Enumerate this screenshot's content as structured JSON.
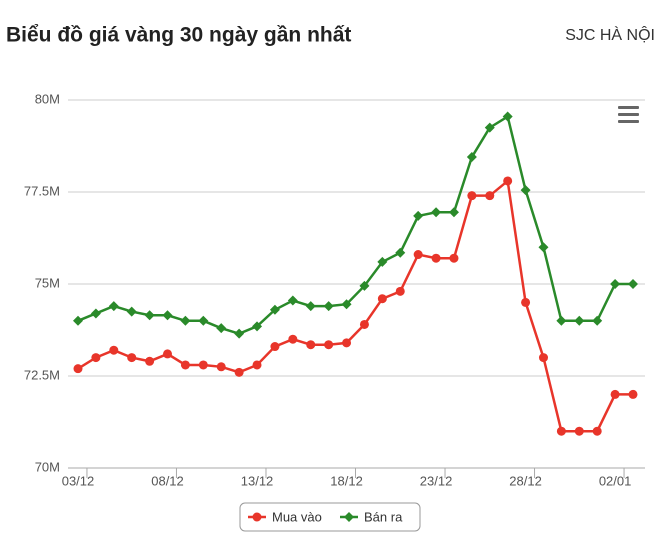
{
  "header": {
    "title": "Biểu đồ giá vàng 30 ngày gần nhất",
    "location": "SJC HÀ NỘI"
  },
  "chart_data": {
    "type": "line",
    "categories": [
      "03/12",
      null,
      null,
      null,
      null,
      "08/12",
      null,
      null,
      null,
      null,
      "13/12",
      null,
      null,
      null,
      null,
      "18/12",
      null,
      null,
      null,
      null,
      "23/12",
      null,
      null,
      null,
      null,
      "28/12",
      null,
      null,
      null,
      null,
      "02/01",
      null
    ],
    "series": [
      {
        "name": "Mua vào",
        "color": "#e8352a",
        "values": [
          72.7,
          73.0,
          73.2,
          73.0,
          72.9,
          73.1,
          72.8,
          72.8,
          72.75,
          72.6,
          72.8,
          73.3,
          73.5,
          73.35,
          73.35,
          73.4,
          73.9,
          74.6,
          74.8,
          75.8,
          75.7,
          75.7,
          77.4,
          77.4,
          77.8,
          74.5,
          73.0,
          71.0,
          71.0,
          71.0,
          72.0,
          72.0
        ]
      },
      {
        "name": "Bán ra",
        "color": "#2a8a2a",
        "values": [
          74.0,
          74.2,
          74.4,
          74.25,
          74.15,
          74.15,
          74.0,
          74.0,
          73.8,
          73.65,
          73.85,
          74.3,
          74.55,
          74.4,
          74.4,
          74.45,
          74.95,
          75.6,
          75.85,
          76.85,
          76.95,
          76.95,
          78.45,
          79.25,
          79.55,
          77.55,
          76.0,
          74.0,
          74.0,
          74.0,
          75.0,
          75.0
        ]
      }
    ],
    "ylim": [
      70,
      80
    ],
    "yticks": [
      {
        "value": 70,
        "label": "70M"
      },
      {
        "value": 72.5,
        "label": "72.5M"
      },
      {
        "value": 75,
        "label": "75M"
      },
      {
        "value": 77.5,
        "label": "77.5M"
      },
      {
        "value": 80,
        "label": "80M"
      }
    ],
    "grid": true
  }
}
